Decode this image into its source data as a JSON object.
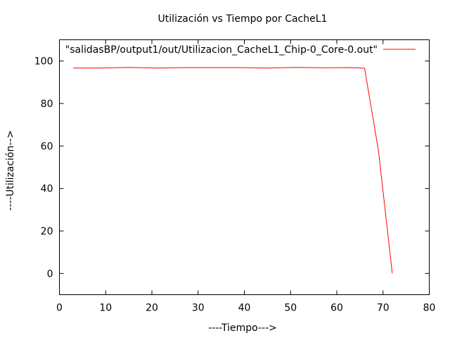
{
  "chart_data": {
    "type": "line",
    "title": "Utilización vs Tiempo por CacheL1",
    "xlabel": "----Tiempo--->",
    "ylabel": "----Utilización-->",
    "xlim": [
      0,
      80
    ],
    "ylim": [
      -10,
      110
    ],
    "xticks": [
      0,
      10,
      20,
      30,
      40,
      50,
      60,
      70,
      80
    ],
    "yticks": [
      0,
      20,
      40,
      60,
      80,
      100
    ],
    "grid": false,
    "legend_position": "top-right",
    "series": [
      {
        "name": "\"salidasBP/output1/out/Utilizacion_CacheL1_Chip-0_Core-0.out\"",
        "color": "#ff0000",
        "x": [
          3,
          9,
          15,
          21,
          27,
          33,
          39,
          45,
          51,
          57,
          63,
          66,
          69,
          72
        ],
        "y": [
          96.7,
          96.7,
          97.0,
          96.7,
          96.9,
          96.9,
          96.9,
          96.7,
          97.0,
          96.8,
          96.9,
          96.6,
          58,
          0
        ]
      }
    ]
  }
}
